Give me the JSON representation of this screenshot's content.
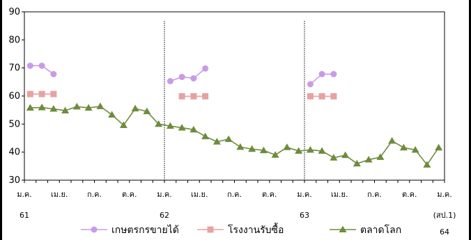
{
  "chart_data": {
    "type": "line",
    "ylim": [
      30,
      90
    ],
    "yticks": [
      "30",
      "40",
      "50",
      "60",
      "70",
      "80",
      "90"
    ],
    "x_month_labels": [
      "ม.ค.",
      "เม.ย.",
      "ก.ค.",
      "ต.ค.",
      "ม.ค.",
      "เม.ย.",
      "ก.ค.",
      "ต.ค.",
      "ม.ค.",
      "เม.ย.",
      "ก.ค.",
      "ต.ค.",
      "ม.ค."
    ],
    "x_year_labels": [
      "61",
      "62",
      "63",
      "(สป.1)"
    ],
    "x_year_label_extra": "64",
    "grid": false,
    "series": [
      {
        "name": "เกษตรกรขายได้",
        "color": "#c89be8",
        "marker": "circle",
        "segments": [
          {
            "start_index": 0,
            "values": [
              70.8,
              70.8,
              67.8
            ]
          },
          {
            "start_index": 12,
            "values": [
              65.3,
              66.8,
              66.3,
              69.8
            ]
          },
          {
            "start_index": 24,
            "values": [
              64.2,
              67.8,
              67.8
            ]
          }
        ]
      },
      {
        "name": "โรงงานรับซื้อ",
        "color": "#e8a1a1",
        "marker": "square",
        "segments": [
          {
            "start_index": 0,
            "values": [
              60.7,
              60.7,
              60.7
            ]
          },
          {
            "start_index": 13,
            "values": [
              59.9,
              59.9,
              59.9
            ]
          },
          {
            "start_index": 24,
            "values": [
              59.9,
              59.9,
              59.9
            ]
          }
        ]
      },
      {
        "name": "ตลาดโลก",
        "color": "#6e8b3d",
        "marker": "triangle",
        "segments": [
          {
            "start_index": 0,
            "values": [
              55.8,
              55.9,
              55.4,
              54.8,
              56.2,
              55.8,
              56.3,
              53.3,
              49.6,
              55.5,
              54.5,
              50.0,
              49.3,
              48.7,
              48.0,
              45.6,
              43.7,
              44.6,
              41.8,
              41.1,
              40.6,
              39.0,
              41.7,
              40.4,
              40.8,
              40.4,
              38.0,
              38.9,
              35.9,
              37.3,
              38.2,
              44.0,
              41.6,
              40.8,
              35.5,
              41.6
            ]
          }
        ]
      }
    ]
  }
}
